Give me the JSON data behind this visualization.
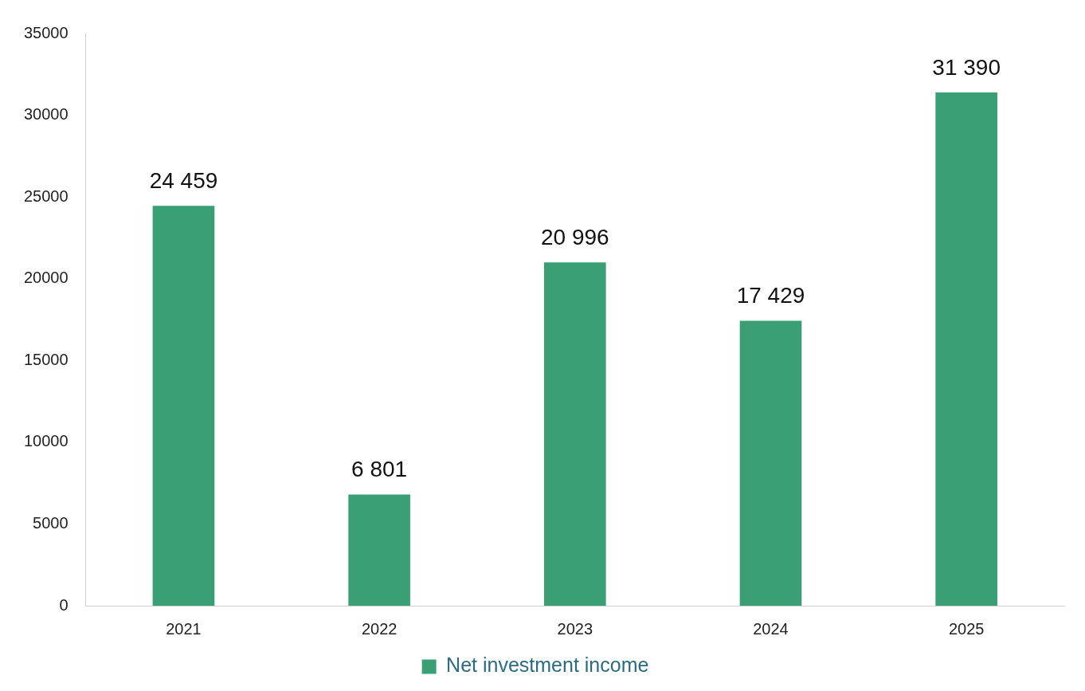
{
  "chart_data": {
    "type": "bar",
    "categories": [
      "2021",
      "2022",
      "2023",
      "2024",
      "2025"
    ],
    "series": [
      {
        "name": "Net investment income",
        "color": "#3a9f74",
        "values": [
          24459,
          6801,
          20996,
          17429,
          31390
        ],
        "value_labels": [
          "24 459",
          "6 801",
          "20 996",
          "17 429",
          "31 390"
        ]
      }
    ],
    "ylim": [
      0,
      35000
    ],
    "yticks": [
      0,
      5000,
      10000,
      15000,
      20000,
      25000,
      30000,
      35000
    ],
    "grid": false,
    "legend": "bottom"
  }
}
